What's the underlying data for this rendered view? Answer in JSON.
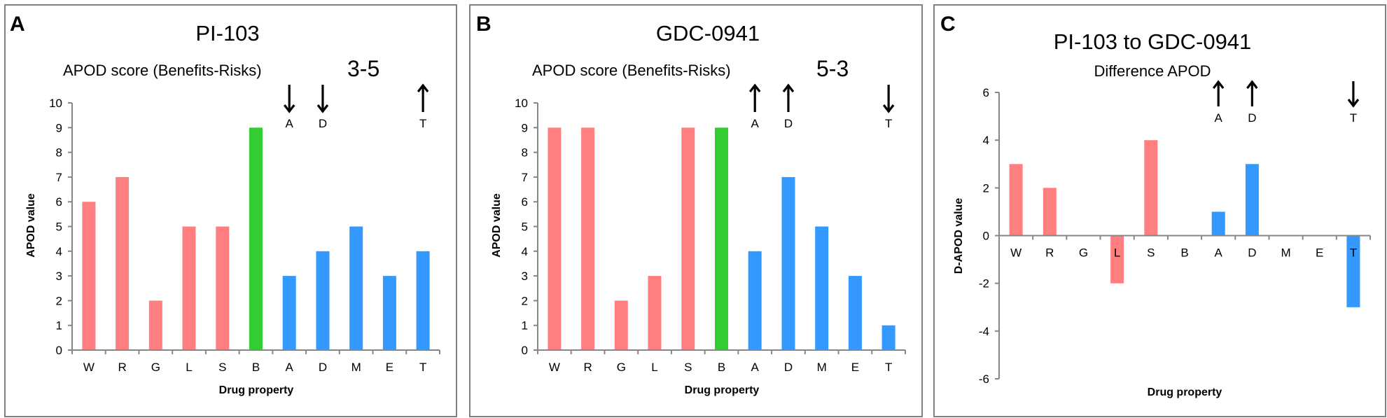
{
  "colors": {
    "pink": "#FF7F80",
    "green": "#33CC33",
    "blue": "#3399FF",
    "axis": "#868686",
    "border": "#808080"
  },
  "chart_data": [
    {
      "type": "bar",
      "panel_letter": "A",
      "title": "PI-103",
      "subtitle": "APOD score (Benefits-Risks)",
      "score": "3-5",
      "categories": [
        "W",
        "R",
        "G",
        "L",
        "S",
        "B",
        "A",
        "D",
        "M",
        "E",
        "T"
      ],
      "values": [
        6,
        7,
        2,
        5,
        5,
        9,
        3,
        4,
        5,
        3,
        4
      ],
      "bar_colors": [
        "pink",
        "pink",
        "pink",
        "pink",
        "pink",
        "green",
        "blue",
        "blue",
        "blue",
        "blue",
        "blue"
      ],
      "xlabel": "Drug property",
      "ylabel": "APOD value",
      "ylim": [
        0,
        10
      ],
      "yticks": [
        0,
        1,
        2,
        3,
        4,
        5,
        6,
        7,
        8,
        9,
        10
      ],
      "grid": false,
      "annotations": [
        {
          "category": "A",
          "direction": "down",
          "label": "A"
        },
        {
          "category": "D",
          "direction": "down",
          "label": "D"
        },
        {
          "category": "T",
          "direction": "up",
          "label": "T"
        }
      ]
    },
    {
      "type": "bar",
      "panel_letter": "B",
      "title": "GDC-0941",
      "subtitle": "APOD score (Benefits-Risks)",
      "score": "5-3",
      "categories": [
        "W",
        "R",
        "G",
        "L",
        "S",
        "B",
        "A",
        "D",
        "M",
        "E",
        "T"
      ],
      "values": [
        9,
        9,
        2,
        3,
        9,
        9,
        4,
        7,
        5,
        3,
        1
      ],
      "bar_colors": [
        "pink",
        "pink",
        "pink",
        "pink",
        "pink",
        "green",
        "blue",
        "blue",
        "blue",
        "blue",
        "blue"
      ],
      "xlabel": "Drug property",
      "ylabel": "APOD value",
      "ylim": [
        0,
        10
      ],
      "yticks": [
        0,
        1,
        2,
        3,
        4,
        5,
        6,
        7,
        8,
        9,
        10
      ],
      "grid": false,
      "annotations": [
        {
          "category": "A",
          "direction": "up",
          "label": "A"
        },
        {
          "category": "D",
          "direction": "up",
          "label": "D"
        },
        {
          "category": "T",
          "direction": "down",
          "label": "T"
        }
      ]
    },
    {
      "type": "bar",
      "panel_letter": "C",
      "title": "PI-103 to GDC-0941",
      "subtitle": "Difference APOD",
      "score": "",
      "categories": [
        "W",
        "R",
        "G",
        "L",
        "S",
        "B",
        "A",
        "D",
        "M",
        "E",
        "T"
      ],
      "values": [
        3,
        2,
        0,
        -2,
        4,
        0,
        1,
        3,
        0,
        0,
        -3
      ],
      "bar_colors": [
        "pink",
        "pink",
        "pink",
        "pink",
        "pink",
        "green",
        "blue",
        "blue",
        "blue",
        "blue",
        "blue"
      ],
      "xlabel": "Drug property",
      "ylabel": "D-APOD value",
      "ylim": [
        -6,
        6
      ],
      "yticks": [
        -6,
        -4,
        -2,
        0,
        2,
        4,
        6
      ],
      "grid": false,
      "annotations": [
        {
          "category": "A",
          "direction": "up",
          "label": "A"
        },
        {
          "category": "D",
          "direction": "up",
          "label": "D"
        },
        {
          "category": "T",
          "direction": "down",
          "label": "T"
        }
      ]
    }
  ]
}
